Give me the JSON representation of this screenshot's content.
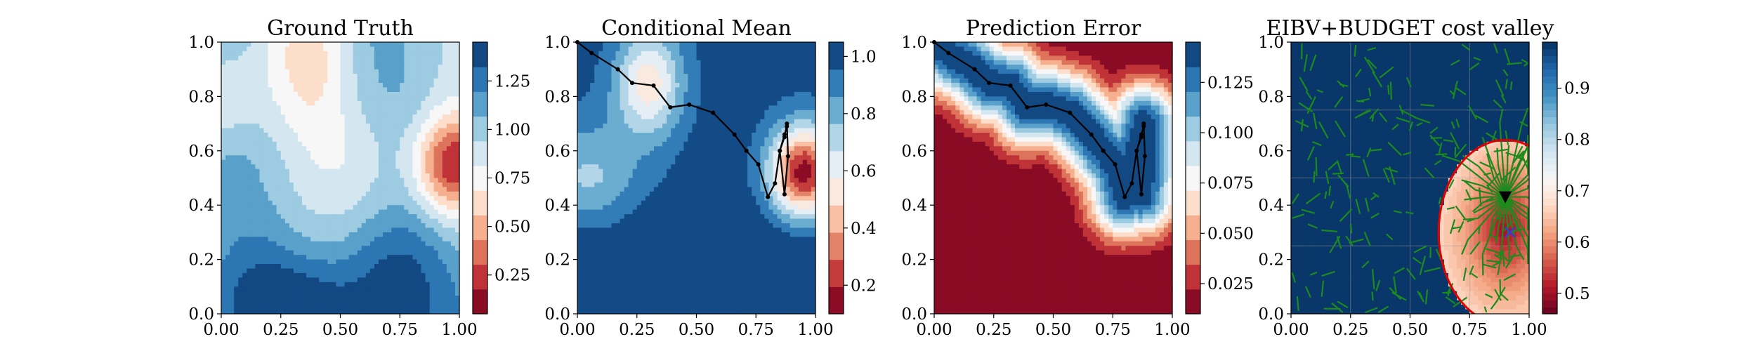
{
  "figure": {
    "background": "#ffffff"
  },
  "chart_data": [
    {
      "type": "heatmap",
      "title": "Ground Truth",
      "xlim": [
        0,
        1
      ],
      "ylim": [
        0,
        1
      ],
      "xticks": [
        "0.00",
        "0.25",
        "0.50",
        "0.75",
        "1.00"
      ],
      "yticks": [
        "0.0",
        "0.2",
        "0.4",
        "0.6",
        "0.8",
        "1.0"
      ],
      "field": "ground_truth",
      "colormap": "RdBu",
      "colorbar": {
        "range": [
          0.05,
          1.45
        ],
        "ticks": [
          "0.25",
          "0.50",
          "0.75",
          "1.00",
          "1.25"
        ],
        "tick_values": [
          0.25,
          0.5,
          0.75,
          1.0,
          1.25
        ],
        "levels": 11
      },
      "path": null
    },
    {
      "type": "heatmap",
      "title": "Conditional Mean",
      "xlim": [
        0,
        1
      ],
      "ylim": [
        0,
        1
      ],
      "xticks": [
        "0.00",
        "0.25",
        "0.50",
        "0.75",
        "1.00"
      ],
      "yticks": [
        "0.0",
        "0.2",
        "0.4",
        "0.6",
        "0.8",
        "1.0"
      ],
      "field": "conditional_mean",
      "colormap": "RdBu",
      "colorbar": {
        "range": [
          0.1,
          1.05
        ],
        "ticks": [
          "0.2",
          "0.4",
          "0.6",
          "0.8",
          "1.0"
        ],
        "tick_values": [
          0.2,
          0.4,
          0.6,
          0.8,
          1.0
        ],
        "levels": 10
      },
      "path": "survey_path"
    },
    {
      "type": "heatmap",
      "title": "Prediction Error",
      "xlim": [
        0,
        1
      ],
      "ylim": [
        0,
        1
      ],
      "xticks": [
        "0.00",
        "0.25",
        "0.50",
        "0.75",
        "1.00"
      ],
      "yticks": [
        "0.0",
        "0.2",
        "0.4",
        "0.6",
        "0.8",
        "1.0"
      ],
      "field": "prediction_error",
      "colormap": "RdBu",
      "colorbar": {
        "range": [
          0.01,
          0.145
        ],
        "ticks": [
          "0.025",
          "0.050",
          "0.075",
          "0.100",
          "0.125"
        ],
        "tick_values": [
          0.025,
          0.05,
          0.075,
          0.1,
          0.125
        ],
        "levels": 11
      },
      "path": "survey_path"
    },
    {
      "type": "heatmap",
      "title": "EIBV+BUDGET cost valley",
      "xlim": [
        0,
        1
      ],
      "ylim": [
        0,
        1
      ],
      "xticks": [
        "0.00",
        "0.25",
        "0.50",
        "0.75",
        "1.00"
      ],
      "yticks": [
        "0.0",
        "0.2",
        "0.4",
        "0.6",
        "0.8",
        "1.0"
      ],
      "field": "cost_valley",
      "colormap": "RdBu",
      "colorbar": {
        "range": [
          0.46,
          0.99
        ],
        "ticks": [
          "0.5",
          "0.6",
          "0.7",
          "0.8",
          "0.9"
        ],
        "tick_values": [
          0.5,
          0.6,
          0.7,
          0.8,
          0.9
        ],
        "levels": 40
      },
      "grid": true,
      "budget_ellipse": {
        "center": [
          0.9,
          0.3
        ],
        "semi_axis_x": 0.28,
        "semi_axis_y": 0.34,
        "color": "#e00000"
      },
      "current_location": [
        0.9,
        0.43
      ],
      "target_location": [
        0.92,
        0.3
      ],
      "tree_color": "#1c8a1c"
    }
  ],
  "survey_path": {
    "x": [
      0.0,
      0.06,
      0.17,
      0.23,
      0.32,
      0.39,
      0.47,
      0.57,
      0.66,
      0.71,
      0.76,
      0.8,
      0.83,
      0.85,
      0.87,
      0.88,
      0.885,
      0.87,
      0.85,
      0.87,
      0.88
    ],
    "y": [
      1.0,
      0.96,
      0.9,
      0.85,
      0.84,
      0.76,
      0.77,
      0.74,
      0.66,
      0.6,
      0.55,
      0.43,
      0.48,
      0.6,
      0.65,
      0.7,
      0.58,
      0.44,
      0.6,
      0.66,
      0.69
    ]
  }
}
